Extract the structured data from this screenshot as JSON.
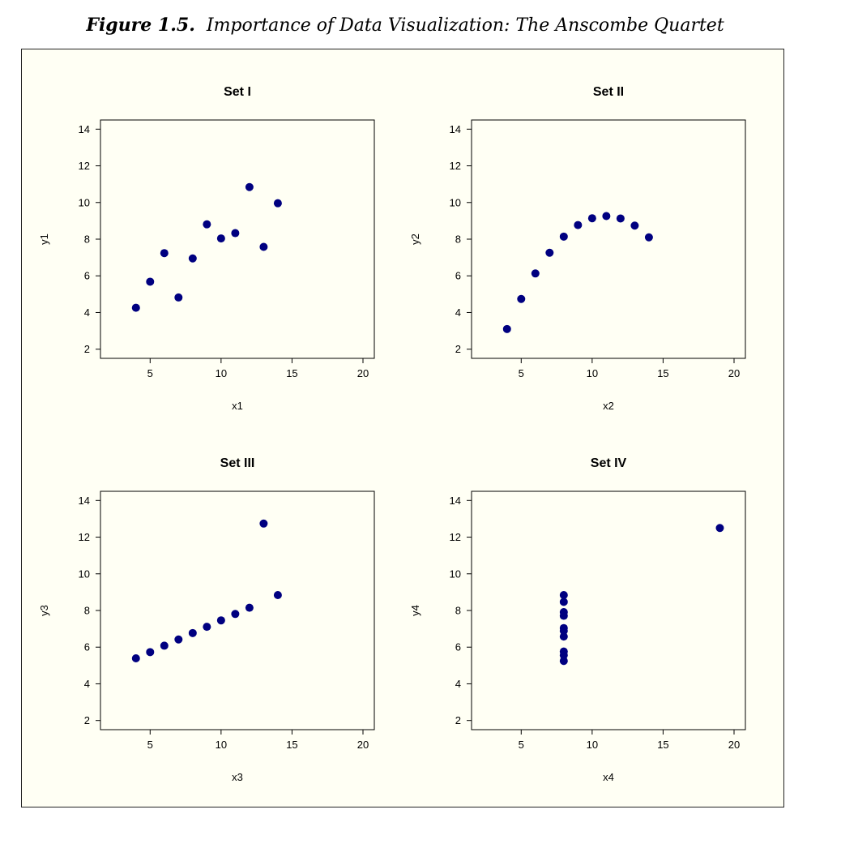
{
  "figure": {
    "number": "Figure 1.5.",
    "title": "Importance of Data Visualization: The Anscombe Quartet"
  },
  "colors": {
    "points": "#000080",
    "panel_bg": "#fffff4"
  },
  "chart_data": [
    {
      "type": "scatter",
      "title": "Set I",
      "xlabel": "x1",
      "ylabel": "y1",
      "xlim": [
        1.5,
        20.8
      ],
      "ylim": [
        1.5,
        14.5
      ],
      "xticks": [
        5,
        10,
        15,
        20
      ],
      "yticks": [
        2,
        4,
        6,
        8,
        10,
        12,
        14
      ],
      "x": [
        10,
        8,
        13,
        9,
        11,
        14,
        6,
        4,
        12,
        7,
        5
      ],
      "y": [
        8.04,
        6.95,
        7.58,
        8.81,
        8.33,
        9.96,
        7.24,
        4.26,
        10.84,
        4.82,
        5.68
      ]
    },
    {
      "type": "scatter",
      "title": "Set II",
      "xlabel": "x2",
      "ylabel": "y2",
      "xlim": [
        1.5,
        20.8
      ],
      "ylim": [
        1.5,
        14.5
      ],
      "xticks": [
        5,
        10,
        15,
        20
      ],
      "yticks": [
        2,
        4,
        6,
        8,
        10,
        12,
        14
      ],
      "x": [
        10,
        8,
        13,
        9,
        11,
        14,
        6,
        4,
        12,
        7,
        5
      ],
      "y": [
        9.14,
        8.14,
        8.74,
        8.77,
        9.26,
        8.1,
        6.13,
        3.1,
        9.13,
        7.26,
        4.74
      ]
    },
    {
      "type": "scatter",
      "title": "Set III",
      "xlabel": "x3",
      "ylabel": "y3",
      "xlim": [
        1.5,
        20.8
      ],
      "ylim": [
        1.5,
        14.5
      ],
      "xticks": [
        5,
        10,
        15,
        20
      ],
      "yticks": [
        2,
        4,
        6,
        8,
        10,
        12,
        14
      ],
      "x": [
        10,
        8,
        13,
        9,
        11,
        14,
        6,
        4,
        12,
        7,
        5
      ],
      "y": [
        7.46,
        6.77,
        12.74,
        7.11,
        7.81,
        8.84,
        6.08,
        5.39,
        8.15,
        6.42,
        5.73
      ]
    },
    {
      "type": "scatter",
      "title": "Set IV",
      "xlabel": "x4",
      "ylabel": "y4",
      "xlim": [
        1.5,
        20.8
      ],
      "ylim": [
        1.5,
        14.5
      ],
      "xticks": [
        5,
        10,
        15,
        20
      ],
      "yticks": [
        2,
        4,
        6,
        8,
        10,
        12,
        14
      ],
      "x": [
        8,
        8,
        8,
        8,
        8,
        8,
        8,
        19,
        8,
        8,
        8
      ],
      "y": [
        6.58,
        5.76,
        7.71,
        8.84,
        8.47,
        7.04,
        5.25,
        12.5,
        5.56,
        7.91,
        6.89
      ]
    }
  ]
}
